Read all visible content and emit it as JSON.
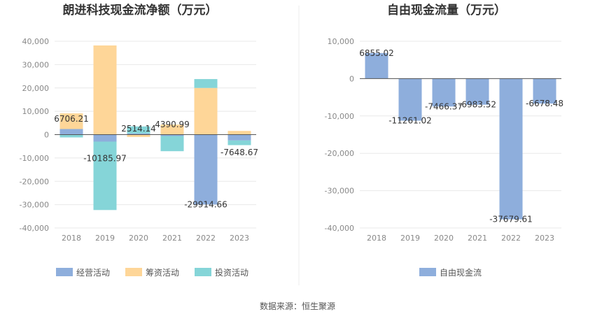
{
  "colors": {
    "operating": "#8eaedc",
    "financing": "#fed698",
    "investing": "#85d5d8",
    "free_cash_flow": "#8eaedc",
    "grid": "#e8e8e8",
    "axis": "#555555"
  },
  "chart_data": [
    {
      "type": "bar",
      "stacked": true,
      "title": "朗进科技现金流净额（万元）",
      "categories": [
        "2018",
        "2019",
        "2020",
        "2021",
        "2022",
        "2023"
      ],
      "ylim": [
        -40000,
        40000
      ],
      "yticks": [
        -40000,
        -30000,
        -20000,
        -10000,
        0,
        10000,
        20000,
        30000,
        40000
      ],
      "ytick_labels": [
        "-40,000",
        "-30,000",
        "-20,000",
        "-10,000",
        "0",
        "10,000",
        "20,000",
        "30,000",
        "40,000"
      ],
      "grid": true,
      "legend_position": "bottom-left",
      "series": [
        {
          "name": "经营活动",
          "color_key": "operating",
          "values": [
            2400,
            -3000,
            500,
            -600,
            -29914.66,
            -2500
          ]
        },
        {
          "name": "筹资活动",
          "color_key": "financing",
          "values": [
            6700,
            38200,
            -1000,
            4300,
            20000,
            1600
          ]
        },
        {
          "name": "投资活动",
          "color_key": "investing",
          "values": [
            -1200,
            -29300,
            3000,
            -6500,
            3800,
            -2000
          ]
        }
      ],
      "data_labels": [
        "6706.21",
        "-10185.97",
        "2514.14",
        "4390.99",
        "-29914.66",
        "-7648.67"
      ],
      "data_label_values": [
        6706.21,
        -10185.97,
        2514.14,
        4390.99,
        -29914.66,
        -7648.67
      ]
    },
    {
      "type": "bar",
      "title": "自由现金流量（万元）",
      "categories": [
        "2018",
        "2019",
        "2020",
        "2021",
        "2022",
        "2023"
      ],
      "ylim": [
        -40000,
        10000
      ],
      "yticks": [
        -40000,
        -30000,
        -20000,
        -10000,
        0,
        10000
      ],
      "ytick_labels": [
        "-40,000",
        "-30,000",
        "-20,000",
        "-10,000",
        "0",
        "10,000"
      ],
      "grid": true,
      "legend_position": "bottom-center",
      "series": [
        {
          "name": "自由现金流",
          "color_key": "free_cash_flow",
          "values": [
            6855.02,
            -11261.02,
            -7466.37,
            -6983.52,
            -37679.61,
            -6678.48
          ]
        }
      ],
      "data_labels": [
        "6855.02",
        "-11261.02",
        "-7466.37",
        "-6983.52",
        "-37679.61",
        "-6678.48"
      ]
    }
  ],
  "source": "数据来源：恒生聚源"
}
